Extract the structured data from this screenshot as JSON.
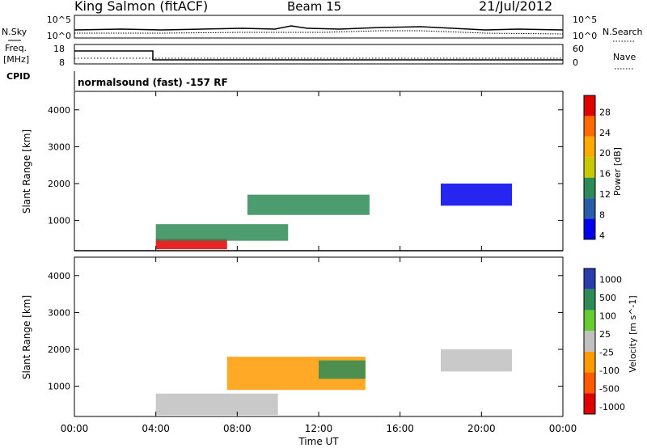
{
  "header": {
    "station": "King Salmon (fitACF)",
    "beam": "Beam 15",
    "date": "21/Jul/2012"
  },
  "noise_panel": {
    "left_label": "N.Sky",
    "right_label": "N.Search",
    "left_ticks": [
      "10^5",
      "10^0"
    ],
    "right_ticks": [
      "10^5",
      "10^0"
    ]
  },
  "freq_panel": {
    "left_label_1": "Freq.",
    "left_label_2": "[MHz]",
    "right_label": "Nave",
    "left_ticks": [
      "18",
      "8"
    ],
    "right_ticks": [
      "60",
      "0"
    ]
  },
  "cpid": {
    "label": "CPID",
    "value": "normalsound (fast) -157 RF"
  },
  "chart_data": [
    {
      "type": "heatmap",
      "quantity": "Power",
      "ylabel": "Slant Range [km]",
      "xlabel": "",
      "y_ticks": [
        "1000",
        "2000",
        "3000",
        "4000"
      ],
      "ylim": [
        180,
        4500
      ],
      "colorbar_label": "Power [dB]",
      "colorbar_ticks": [
        "28",
        "24",
        "20",
        "16",
        "12",
        "8",
        "4"
      ],
      "colorbar_colors": [
        "#e00000",
        "#ff6a00",
        "#ffaa00",
        "#c8c800",
        "#2e8b57",
        "#2a5da8",
        "#0000ee"
      ],
      "regions": [
        {
          "t_start_h": 4.0,
          "t_end_h": 7.5,
          "range_km": [
            220,
            500
          ],
          "level_db": 28
        },
        {
          "t_start_h": 4.0,
          "t_end_h": 10.5,
          "range_km": [
            450,
            900
          ],
          "level_db": 14
        },
        {
          "t_start_h": 8.5,
          "t_end_h": 14.5,
          "range_km": [
            1150,
            1700
          ],
          "level_db": 12
        },
        {
          "t_start_h": 18.0,
          "t_end_h": 21.5,
          "range_km": [
            1400,
            2000
          ],
          "level_db": 6
        }
      ]
    },
    {
      "type": "heatmap",
      "quantity": "Velocity",
      "ylabel": "Slant Range [km]",
      "xlabel": "Time UT",
      "x_ticks": [
        "00:00",
        "04:00",
        "08:00",
        "12:00",
        "16:00",
        "20:00",
        "00:00"
      ],
      "y_ticks": [
        "1000",
        "2000",
        "3000",
        "4000"
      ],
      "ylim": [
        180,
        4500
      ],
      "colorbar_label": "Velocity [m s^-1]",
      "colorbar_ticks": [
        "1000",
        "500",
        "100",
        "25",
        "-25",
        "-100",
        "-500",
        "-1000"
      ],
      "colorbar_colors": [
        "#2a3cae",
        "#2e8b57",
        "#66cc33",
        "#c0c0c0",
        "#ff9a00",
        "#ff5a00",
        "#e00000"
      ],
      "regions": [
        {
          "t_start_h": 4.0,
          "t_end_h": 10.0,
          "range_km": [
            220,
            800
          ],
          "velocity_ms": 0
        },
        {
          "t_start_h": 7.5,
          "t_end_h": 14.3,
          "range_km": [
            900,
            1800
          ],
          "velocity_ms": -300
        },
        {
          "t_start_h": 12.0,
          "t_end_h": 14.3,
          "range_km": [
            1200,
            1700
          ],
          "velocity_ms": 150
        },
        {
          "t_start_h": 18.0,
          "t_end_h": 21.5,
          "range_km": [
            1400,
            2000
          ],
          "velocity_ms": 0
        }
      ]
    }
  ]
}
